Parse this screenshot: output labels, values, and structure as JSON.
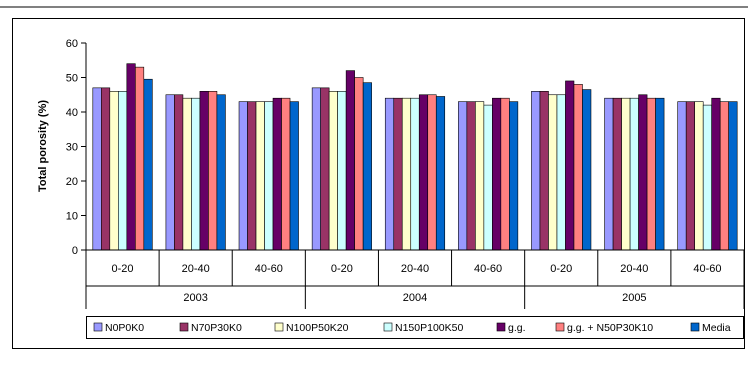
{
  "chart_data": {
    "type": "bar",
    "ylabel": "Total porosity (%)",
    "ylim": [
      0,
      60
    ],
    "yticks": [
      0,
      10,
      20,
      30,
      40,
      50,
      60
    ],
    "grid": false,
    "legend_position": "bottom",
    "groups": [
      {
        "label": "2003",
        "categories": [
          "0-20",
          "20-40",
          "40-60"
        ]
      },
      {
        "label": "2004",
        "categories": [
          "0-20",
          "20-40",
          "40-60"
        ]
      },
      {
        "label": "2005",
        "categories": [
          "0-20",
          "20-40",
          "40-60"
        ]
      }
    ],
    "series": [
      {
        "name": "N0P0K0",
        "color": "#9999FF",
        "values": [
          47,
          45,
          43,
          47,
          44,
          43,
          46,
          44,
          43
        ]
      },
      {
        "name": "N70P30K0",
        "color": "#993366",
        "values": [
          47,
          45,
          43,
          47,
          44,
          43,
          46,
          44,
          43
        ]
      },
      {
        "name": "N100P50K20",
        "color": "#FFFFCC",
        "values": [
          46,
          44,
          43,
          46,
          44,
          43,
          45,
          44,
          43
        ]
      },
      {
        "name": "N150P100K50",
        "color": "#CCFFFF",
        "values": [
          46,
          44,
          43,
          46,
          44,
          42,
          45,
          44,
          42
        ]
      },
      {
        "name": "g.g.",
        "color": "#660066",
        "values": [
          54,
          46,
          44,
          52,
          45,
          44,
          49,
          45,
          44
        ]
      },
      {
        "name": "g.g. + N50P30K10",
        "color": "#FF8080",
        "values": [
          53,
          46,
          44,
          50,
          45,
          44,
          48,
          44,
          43
        ]
      },
      {
        "name": "Media",
        "color": "#0066CC",
        "values": [
          49.5,
          45,
          43,
          48.5,
          44.5,
          43,
          46.5,
          44,
          43
        ]
      }
    ]
  }
}
